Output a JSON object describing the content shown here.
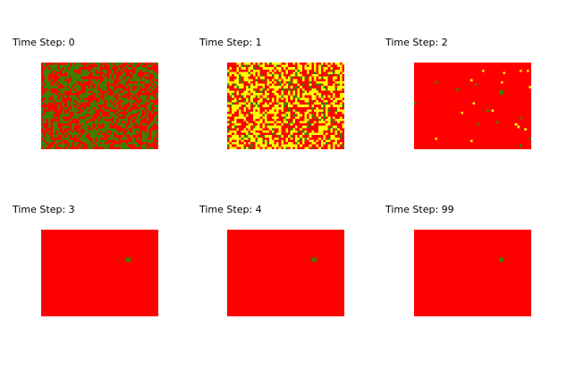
{
  "panels": [
    {
      "title": "Time Step: 0"
    },
    {
      "title": "Time Step: 1"
    },
    {
      "title": "Time Step: 2"
    },
    {
      "title": "Time Step: 3"
    },
    {
      "title": "Time Step: 4"
    },
    {
      "title": "Time Step: 99"
    }
  ]
}
